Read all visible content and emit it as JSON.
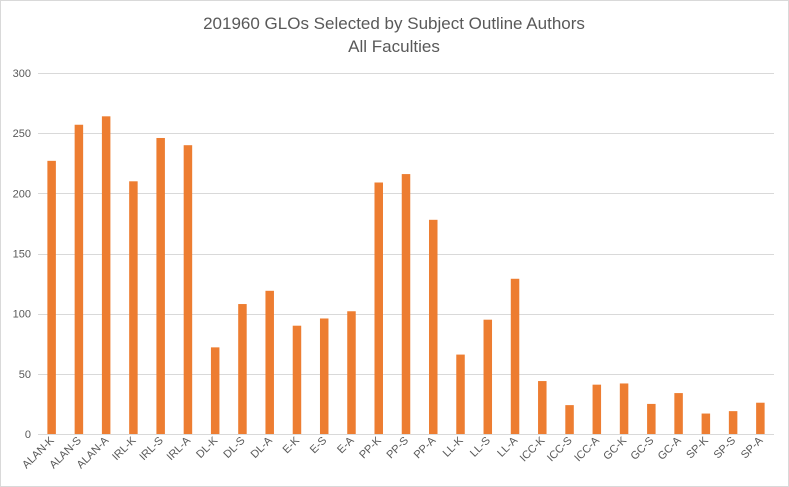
{
  "chart_data": {
    "type": "bar",
    "title": "201960 GLOs Selected by Subject Outline Authors",
    "subtitle": "All Faculties",
    "xlabel": "",
    "ylabel": "",
    "ylim": [
      0,
      300
    ],
    "yticks": [
      0,
      50,
      100,
      150,
      200,
      250,
      300
    ],
    "grid": true,
    "legend": "none",
    "bar_color": "#ED7D31",
    "grid_color": "#d9d9d9",
    "text_color": "#595959",
    "categories": [
      "ALAN-K",
      "ALAN-S",
      "ALAN-A",
      "IRL-K",
      "IRL-S",
      "IRL-A",
      "DL-K",
      "DL-S",
      "DL-A",
      "E-K",
      "E-S",
      "E-A",
      "PP-K",
      "PP-S",
      "PP-A",
      "LL-K",
      "LL-S",
      "LL-A",
      "ICC-K",
      "ICC-S",
      "ICC-A",
      "GC-K",
      "GC-S",
      "GC-A",
      "SP-K",
      "SP-S",
      "SP-A"
    ],
    "values": [
      227,
      257,
      264,
      210,
      246,
      240,
      72,
      108,
      119,
      90,
      96,
      102,
      209,
      216,
      178,
      66,
      95,
      129,
      44,
      24,
      41,
      42,
      25,
      34,
      17,
      19,
      26
    ]
  }
}
